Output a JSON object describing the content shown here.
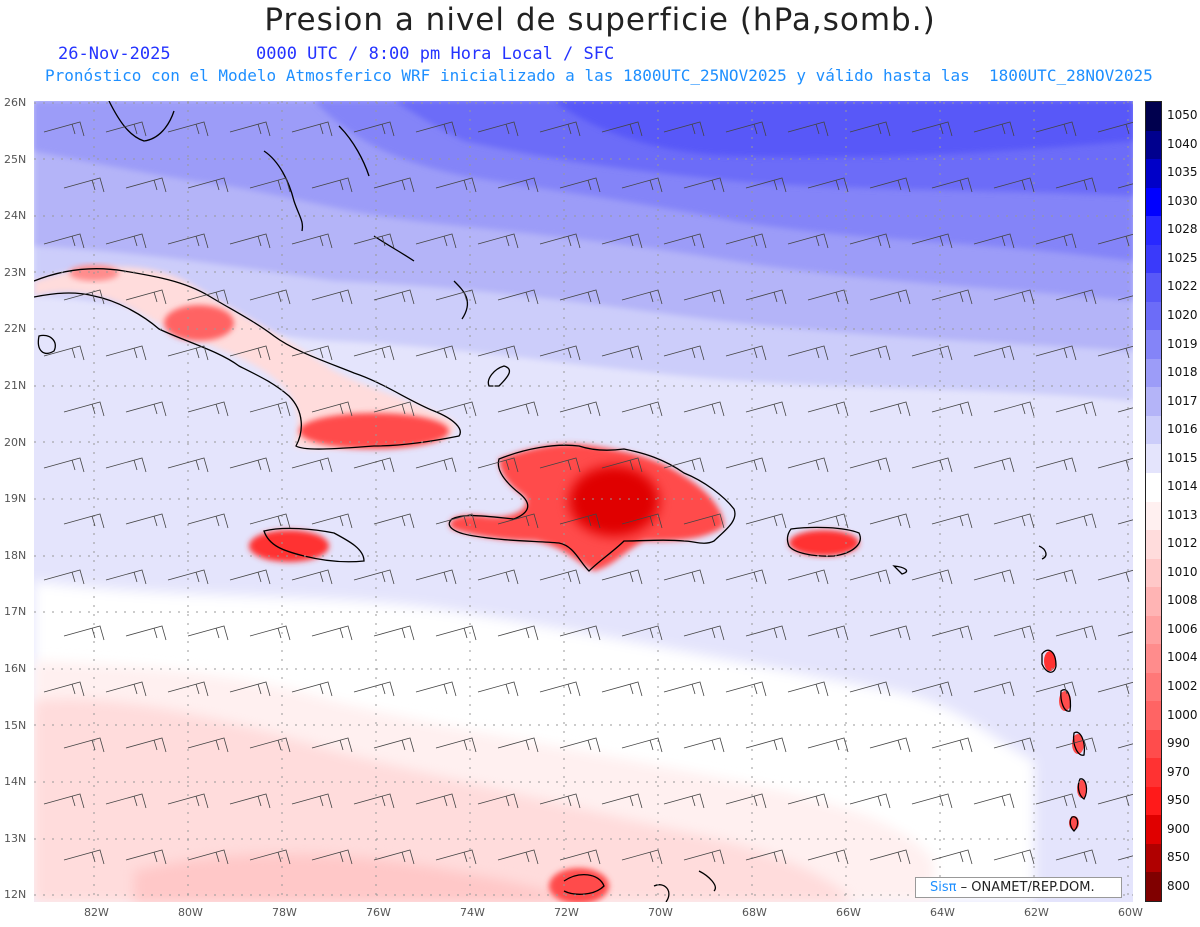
{
  "header": {
    "title": "Presion a nivel de superficie (hPa,somb.)",
    "date": "26-Nov-2025",
    "time_info": "0000 UTC / 8:00 pm Hora Local / SFC",
    "model_info": "Pronóstico con el Modelo Atmosferico WRF inicializado a las 1800UTC_25NOV2025 y válido hasta las  1800UTC_28NOV2025"
  },
  "axes": {
    "lat_labels": [
      "26N",
      "25N",
      "24N",
      "23N",
      "22N",
      "21N",
      "20N",
      "19N",
      "18N",
      "17N",
      "16N",
      "15N",
      "14N",
      "13N",
      "12N"
    ],
    "lon_labels": [
      "82W",
      "80W",
      "78W",
      "76W",
      "74W",
      "72W",
      "70W",
      "68W",
      "66W",
      "64W",
      "62W",
      "60W"
    ]
  },
  "colorbar": {
    "levels": [
      "1050",
      "1040",
      "1035",
      "1030",
      "1028",
      "1025",
      "1022",
      "1020",
      "1019",
      "1018",
      "1017",
      "1016",
      "1015",
      "1014",
      "1013",
      "1012",
      "1010",
      "1008",
      "1006",
      "1004",
      "1002",
      "1000",
      "990",
      "970",
      "950",
      "900",
      "850",
      "800"
    ],
    "colors": [
      "#00004e",
      "#00008e",
      "#0000c8",
      "#0000ff",
      "#2828ff",
      "#3a3afa",
      "#5858f8",
      "#6c6cf8",
      "#8484f8",
      "#9c9cf8",
      "#b4b4f8",
      "#cccdfa",
      "#e4e4fc",
      "#ffffff",
      "#fff0f0",
      "#ffdcdc",
      "#ffc8c8",
      "#ffb4b4",
      "#ffa0a0",
      "#ff8c8c",
      "#ff7878",
      "#ff6464",
      "#ff4c4c",
      "#ff3232",
      "#ff1a1a",
      "#e00000",
      "#b00000",
      "#800000"
    ]
  },
  "credit": {
    "sis": "Sisπ",
    "org": " – ONAMET/REP.DOM."
  },
  "map_layers": [
    "pressure-shading",
    "coastlines",
    "wind-barbs",
    "graticule"
  ]
}
